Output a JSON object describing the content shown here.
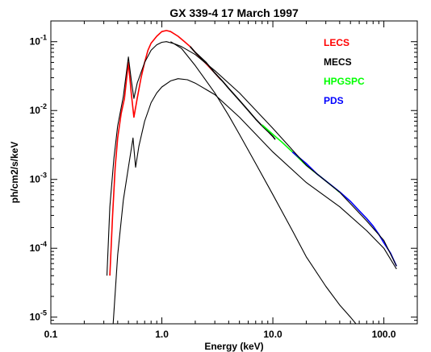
{
  "chart_data": {
    "type": "line",
    "title": "GX 339-4 17 March 1997",
    "xlabel": "Energy (keV)",
    "ylabel": "ph/cm2/s/keV",
    "xscale": "log",
    "yscale": "log",
    "xlim": [
      0.1,
      200
    ],
    "ylim": [
      8e-06,
      0.2
    ],
    "grid": false,
    "legend_position": "top-right",
    "x_ticks": [
      {
        "value": 0.1,
        "label": "0.1"
      },
      {
        "value": 1,
        "label": "1.0"
      },
      {
        "value": 10,
        "label": "10.0"
      },
      {
        "value": 100,
        "label": "100.0"
      }
    ],
    "y_ticks": [
      {
        "value": 1e-05,
        "base": "10",
        "exp": "-5"
      },
      {
        "value": 0.0001,
        "base": "10",
        "exp": "-4"
      },
      {
        "value": 0.001,
        "base": "10",
        "exp": "-3"
      },
      {
        "value": 0.01,
        "base": "10",
        "exp": "-2"
      },
      {
        "value": 0.1,
        "base": "10",
        "exp": "-1"
      }
    ],
    "series": [
      {
        "name": "LECS",
        "color": "#ff0000",
        "x": [
          0.34,
          0.36,
          0.38,
          0.4,
          0.43,
          0.46,
          0.5,
          0.53,
          0.56,
          0.6,
          0.65,
          0.7,
          0.75,
          0.8,
          0.9,
          1.0,
          1.1,
          1.2,
          1.4,
          1.6,
          1.8,
          2.0,
          2.3,
          2.6,
          3.0,
          3.4
        ],
        "y": [
          4e-05,
          0.0003,
          0.0015,
          0.004,
          0.009,
          0.015,
          0.05,
          0.018,
          0.008,
          0.015,
          0.03,
          0.05,
          0.075,
          0.095,
          0.12,
          0.14,
          0.145,
          0.14,
          0.12,
          0.1,
          0.085,
          0.07,
          0.055,
          0.045,
          0.035,
          0.028
        ]
      },
      {
        "name": "MECS",
        "color": "#000000",
        "x": [
          1.8,
          2.0,
          2.5,
          3.0,
          3.5,
          4.0,
          5.0,
          6.0,
          7.0,
          8.0,
          9.0,
          10.0,
          10.5
        ],
        "y": [
          0.085,
          0.07,
          0.05,
          0.035,
          0.027,
          0.021,
          0.014,
          0.01,
          0.0075,
          0.006,
          0.005,
          0.0042,
          0.0038
        ]
      },
      {
        "name": "HPGSPC",
        "color": "#00ff00",
        "x": [
          8.0,
          10.0,
          12.0,
          15.0,
          20.0,
          25.0,
          30.0,
          35.0,
          40.0
        ],
        "y": [
          0.0062,
          0.0045,
          0.0035,
          0.0025,
          0.0016,
          0.0012,
          0.00095,
          0.00078,
          0.00065
        ]
      },
      {
        "name": "PDS",
        "color": "#0000ff",
        "x": [
          15.0,
          20.0,
          25.0,
          30.0,
          40.0,
          50.0,
          60.0,
          70.0,
          80.0,
          90.0,
          100.0,
          115.0,
          130.0
        ],
        "y": [
          0.0025,
          0.0017,
          0.0012,
          0.00095,
          0.00066,
          0.00048,
          0.00035,
          0.00027,
          0.00021,
          0.00016,
          0.00012,
          8.5e-05,
          5.5e-05
        ]
      },
      {
        "color": "#000000",
        "x": [
          0.32,
          0.34,
          0.37,
          0.4,
          0.45,
          0.5,
          0.53,
          0.56,
          0.6,
          0.7,
          0.8,
          0.9,
          1.0,
          1.1,
          1.3,
          1.5,
          2.0,
          3.0,
          5.0,
          10.0,
          20.0,
          40.0,
          70.0,
          100.0,
          130.0
        ],
        "y": [
          4e-05,
          0.0004,
          0.002,
          0.006,
          0.016,
          0.06,
          0.028,
          0.015,
          0.025,
          0.05,
          0.075,
          0.09,
          0.098,
          0.1,
          0.093,
          0.085,
          0.065,
          0.038,
          0.018,
          0.0055,
          0.0016,
          0.00065,
          0.00025,
          0.00013,
          5.5e-05
        ]
      },
      {
        "color": "#000000",
        "x": [
          0.36,
          0.4,
          0.45,
          0.5,
          0.55,
          0.58,
          0.62,
          0.7,
          0.8,
          0.9,
          1.0,
          1.2,
          1.4,
          1.7,
          2.0,
          3.0,
          5.0,
          10.0,
          20.0,
          40.0,
          70.0,
          100.0,
          130.0
        ],
        "y": [
          6e-06,
          8e-05,
          0.0005,
          0.0015,
          0.004,
          0.0015,
          0.003,
          0.007,
          0.013,
          0.018,
          0.022,
          0.027,
          0.029,
          0.028,
          0.025,
          0.017,
          0.008,
          0.0025,
          0.0009,
          0.0004,
          0.00018,
          0.0001,
          5e-05
        ]
      },
      {
        "color": "#000000",
        "x": [
          1.2,
          1.5,
          2.0,
          3.0,
          4.0,
          5.0,
          7.0,
          10.0,
          15.0,
          20.0,
          30.0,
          40.0,
          50.0,
          60.0
        ],
        "y": [
          0.1,
          0.08,
          0.045,
          0.018,
          0.0085,
          0.0045,
          0.0017,
          0.0006,
          0.00018,
          7.5e-05,
          2.8e-05,
          1.5e-05,
          1e-05,
          7e-06
        ]
      }
    ]
  }
}
